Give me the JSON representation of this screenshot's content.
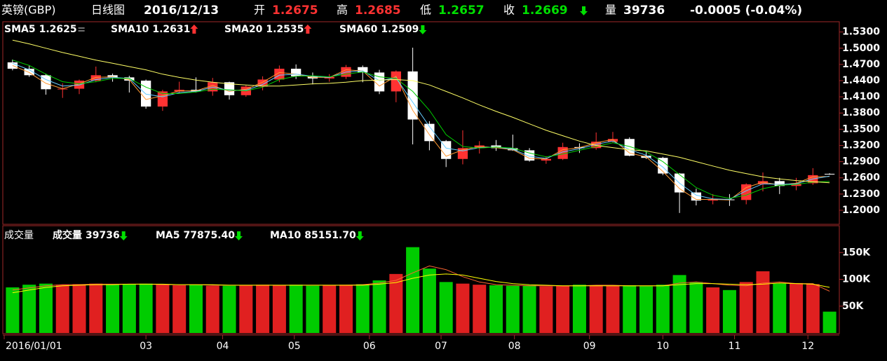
{
  "header": {
    "symbol": "英镑(GBP)",
    "period": "日线图",
    "date": "2016/12/13",
    "open_label": "开",
    "open": "1.2675",
    "high_label": "高",
    "high": "1.2685",
    "low_label": "低",
    "low": "1.2657",
    "close_label": "收",
    "close": "1.2669",
    "close_trend": "down",
    "volume_label": "量",
    "volume": "39736",
    "change": "-0.0005 (-0.04%)"
  },
  "chart_data": [
    {
      "type": "candlestick",
      "up_color": "#ff3232",
      "down_color": "#ffffff",
      "x": [
        0,
        1,
        2,
        3,
        4,
        5,
        6,
        7,
        8,
        9,
        10,
        11,
        12,
        13,
        14,
        15,
        16,
        17,
        18,
        19,
        20,
        21,
        22,
        23,
        24,
        25,
        26,
        27,
        28,
        29,
        30,
        31,
        32,
        33,
        34,
        35,
        36,
        37,
        38,
        39,
        40,
        41,
        42,
        43,
        44,
        45,
        46,
        47,
        48,
        49
      ],
      "xlim": [
        -0.5,
        49.5
      ],
      "ylim": [
        1.174,
        1.549
      ],
      "yticks": [
        {
          "value": 1.53,
          "label": "1.5300"
        },
        {
          "value": 1.5,
          "label": "1.5000"
        },
        {
          "value": 1.47,
          "label": "1.4700"
        },
        {
          "value": 1.44,
          "label": "1.4400"
        },
        {
          "value": 1.41,
          "label": "1.4100"
        },
        {
          "value": 1.38,
          "label": "1.3800"
        },
        {
          "value": 1.35,
          "label": "1.3500"
        },
        {
          "value": 1.32,
          "label": "1.3200"
        },
        {
          "value": 1.29,
          "label": "1.2900"
        },
        {
          "value": 1.26,
          "label": "1.2600"
        },
        {
          "value": 1.23,
          "label": "1.2300"
        },
        {
          "value": 1.2,
          "label": "1.2000"
        }
      ],
      "open": [
        1.4738,
        1.462,
        1.45,
        1.424,
        1.425,
        1.44,
        1.45,
        1.446,
        1.44,
        1.392,
        1.42,
        1.423,
        1.42,
        1.437,
        1.413,
        1.429,
        1.442,
        1.462,
        1.448,
        1.444,
        1.447,
        1.465,
        1.455,
        1.42,
        1.457,
        1.36,
        1.328,
        1.295,
        1.315,
        1.32,
        1.315,
        1.311,
        1.292,
        1.295,
        1.317,
        1.315,
        1.327,
        1.332,
        1.301,
        1.297,
        1.268,
        1.233,
        1.218,
        1.22,
        1.219,
        1.248,
        1.254,
        1.245,
        1.25,
        1.2675
      ],
      "high": [
        1.479,
        1.468,
        1.453,
        1.435,
        1.442,
        1.466,
        1.453,
        1.449,
        1.442,
        1.423,
        1.438,
        1.446,
        1.445,
        1.438,
        1.431,
        1.448,
        1.468,
        1.47,
        1.455,
        1.452,
        1.469,
        1.468,
        1.46,
        1.459,
        1.501,
        1.365,
        1.33,
        1.348,
        1.328,
        1.33,
        1.34,
        1.315,
        1.3,
        1.325,
        1.324,
        1.344,
        1.345,
        1.335,
        1.31,
        1.299,
        1.269,
        1.24,
        1.23,
        1.23,
        1.25,
        1.27,
        1.26,
        1.26,
        1.278,
        1.2685
      ],
      "low": [
        1.459,
        1.447,
        1.414,
        1.408,
        1.415,
        1.437,
        1.438,
        1.418,
        1.388,
        1.384,
        1.416,
        1.418,
        1.412,
        1.405,
        1.41,
        1.422,
        1.437,
        1.443,
        1.433,
        1.438,
        1.443,
        1.437,
        1.415,
        1.4,
        1.322,
        1.311,
        1.28,
        1.285,
        1.305,
        1.31,
        1.31,
        1.29,
        1.286,
        1.293,
        1.306,
        1.312,
        1.325,
        1.3,
        1.295,
        1.265,
        1.195,
        1.209,
        1.211,
        1.208,
        1.211,
        1.235,
        1.23,
        1.237,
        1.247,
        1.2657
      ],
      "close": [
        1.462,
        1.45,
        1.424,
        1.425,
        1.44,
        1.45,
        1.446,
        1.44,
        1.392,
        1.42,
        1.423,
        1.42,
        1.437,
        1.413,
        1.429,
        1.442,
        1.462,
        1.448,
        1.444,
        1.447,
        1.465,
        1.455,
        1.42,
        1.457,
        1.368,
        1.328,
        1.295,
        1.315,
        1.32,
        1.315,
        1.311,
        1.292,
        1.295,
        1.317,
        1.315,
        1.327,
        1.332,
        1.301,
        1.297,
        1.268,
        1.233,
        1.218,
        1.22,
        1.219,
        1.248,
        1.254,
        1.245,
        1.25,
        1.265,
        1.2669
      ],
      "series": [
        {
          "name": "SMA5",
          "color": "#ff9933",
          "trend": "flat",
          "values": [
            1.468,
            1.455,
            1.435,
            1.425,
            1.434,
            1.446,
            1.447,
            1.442,
            1.405,
            1.412,
            1.421,
            1.421,
            1.431,
            1.42,
            1.424,
            1.437,
            1.455,
            1.452,
            1.446,
            1.446,
            1.46,
            1.458,
            1.43,
            1.448,
            1.385,
            1.34,
            1.3,
            1.312,
            1.318,
            1.316,
            1.312,
            1.296,
            1.295,
            1.312,
            1.316,
            1.325,
            1.331,
            1.306,
            1.299,
            1.272,
            1.24,
            1.22,
            1.22,
            1.219,
            1.242,
            1.252,
            1.247,
            1.25,
            1.262,
            1.2625
          ]
        },
        {
          "name": "SMA10",
          "color": "#66ccff",
          "trend": "up",
          "values": [
            1.472,
            1.46,
            1.442,
            1.43,
            1.432,
            1.442,
            1.446,
            1.444,
            1.415,
            1.41,
            1.418,
            1.42,
            1.428,
            1.422,
            1.422,
            1.433,
            1.45,
            1.452,
            1.448,
            1.446,
            1.456,
            1.458,
            1.44,
            1.445,
            1.4,
            1.355,
            1.315,
            1.31,
            1.316,
            1.317,
            1.313,
            1.3,
            1.296,
            1.308,
            1.314,
            1.322,
            1.328,
            1.312,
            1.302,
            1.28,
            1.25,
            1.228,
            1.221,
            1.22,
            1.236,
            1.249,
            1.248,
            1.249,
            1.258,
            1.2631
          ]
        },
        {
          "name": "SMA20",
          "color": "#00cc00",
          "trend": "up",
          "values": [
            1.478,
            1.468,
            1.452,
            1.438,
            1.434,
            1.438,
            1.444,
            1.444,
            1.428,
            1.416,
            1.416,
            1.419,
            1.424,
            1.423,
            1.421,
            1.428,
            1.442,
            1.448,
            1.449,
            1.447,
            1.452,
            1.456,
            1.447,
            1.444,
            1.42,
            1.385,
            1.34,
            1.318,
            1.315,
            1.317,
            1.315,
            1.306,
            1.299,
            1.304,
            1.311,
            1.318,
            1.325,
            1.318,
            1.308,
            1.29,
            1.266,
            1.242,
            1.228,
            1.222,
            1.228,
            1.24,
            1.246,
            1.248,
            1.252,
            1.2535
          ]
        },
        {
          "name": "SMA60",
          "color": "#ffff66",
          "trend": "down",
          "values": [
            1.515,
            1.508,
            1.5,
            1.492,
            1.485,
            1.478,
            1.472,
            1.466,
            1.46,
            1.452,
            1.446,
            1.441,
            1.437,
            1.434,
            1.432,
            1.43,
            1.43,
            1.432,
            1.434,
            1.435,
            1.437,
            1.44,
            1.441,
            1.442,
            1.44,
            1.432,
            1.42,
            1.408,
            1.395,
            1.383,
            1.372,
            1.36,
            1.348,
            1.338,
            1.328,
            1.32,
            1.316,
            1.312,
            1.31,
            1.304,
            1.298,
            1.29,
            1.282,
            1.274,
            1.268,
            1.262,
            1.258,
            1.255,
            1.253,
            1.2509
          ]
        }
      ]
    },
    {
      "type": "volume",
      "title": "成交量",
      "up_color": "#e02020",
      "down_color": "#00cc00",
      "x": [
        0,
        1,
        2,
        3,
        4,
        5,
        6,
        7,
        8,
        9,
        10,
        11,
        12,
        13,
        14,
        15,
        16,
        17,
        18,
        19,
        20,
        21,
        22,
        23,
        24,
        25,
        26,
        27,
        28,
        29,
        30,
        31,
        32,
        33,
        34,
        35,
        36,
        37,
        38,
        39,
        40,
        41,
        42,
        43,
        44,
        45,
        46,
        47,
        48,
        49
      ],
      "xlim": [
        -0.5,
        49.5
      ],
      "xticks": [
        {
          "value": -0.5,
          "label": "2016/01/01"
        },
        {
          "value": 8.0,
          "label": "03"
        },
        {
          "value": 12.6,
          "label": "04"
        },
        {
          "value": 16.9,
          "label": "05"
        },
        {
          "value": 21.4,
          "label": "06"
        },
        {
          "value": 25.7,
          "label": "07"
        },
        {
          "value": 30.1,
          "label": "08"
        },
        {
          "value": 34.6,
          "label": "09"
        },
        {
          "value": 39.0,
          "label": "10"
        },
        {
          "value": 43.3,
          "label": "11"
        },
        {
          "value": 47.7,
          "label": "12"
        }
      ],
      "ylim": [
        0,
        200000
      ],
      "yticks": [
        {
          "value": 50000,
          "label": "50K"
        },
        {
          "value": 100000,
          "label": "100K"
        },
        {
          "value": 150000,
          "label": "150K"
        }
      ],
      "series": [
        {
          "name": "成交量",
          "color": "#ffffff",
          "trend": "down",
          "values": [
            85000,
            90000,
            92000,
            90000,
            91000,
            92000,
            90000,
            91000,
            92000,
            90000,
            89000,
            90000,
            88000,
            88000,
            89000,
            90000,
            89000,
            90000,
            88000,
            89000,
            90000,
            91000,
            98000,
            110000,
            160000,
            120000,
            95000,
            92000,
            90000,
            89000,
            88000,
            89000,
            87000,
            88000,
            90000,
            89000,
            88000,
            89000,
            87000,
            90000,
            108000,
            95000,
            85000,
            80000,
            95000,
            115000,
            92000,
            93000,
            91000,
            39736
          ]
        },
        {
          "name": "MA5",
          "color": "#ff6633",
          "trend": "down",
          "values": [
            80000,
            84000,
            88000,
            90000,
            90000,
            91000,
            91000,
            91000,
            91000,
            90000,
            90000,
            90000,
            89000,
            89000,
            89000,
            89000,
            89000,
            89000,
            89000,
            89000,
            89000,
            90000,
            93000,
            98000,
            112000,
            125000,
            118000,
            105000,
            95000,
            90000,
            89000,
            88000,
            88000,
            88000,
            88000,
            89000,
            89000,
            88000,
            88000,
            88000,
            93000,
            95000,
            92000,
            89000,
            88000,
            93000,
            95000,
            92000,
            92000,
            77875.4
          ],
          "value_labels": [
            null,
            null,
            null,
            null,
            null,
            null,
            null,
            null,
            null,
            null,
            null,
            null,
            null,
            null,
            null,
            null,
            null,
            null,
            null,
            null,
            null,
            null,
            null,
            null,
            null,
            null,
            null,
            null,
            null,
            null,
            null,
            null,
            null,
            null,
            null,
            null,
            null,
            null,
            null,
            null,
            null,
            null,
            null,
            null,
            null,
            null,
            null,
            null,
            null,
            "77875.40"
          ]
        },
        {
          "name": "MA10",
          "color": "#ffff00",
          "trend": "down",
          "values": [
            75000,
            80000,
            85000,
            88000,
            89000,
            90000,
            90000,
            91000,
            91000,
            91000,
            90000,
            90000,
            90000,
            89000,
            89000,
            89000,
            89000,
            89000,
            89000,
            89000,
            89000,
            89000,
            91000,
            94000,
            102000,
            108000,
            110000,
            108000,
            102000,
            96000,
            92000,
            90000,
            89000,
            88000,
            88000,
            88000,
            88000,
            88000,
            88000,
            88000,
            90000,
            92000,
            92000,
            91000,
            90000,
            91000,
            93000,
            92000,
            91000,
            85151.7
          ],
          "value_labels": [
            null,
            null,
            null,
            null,
            null,
            null,
            null,
            null,
            null,
            null,
            null,
            null,
            null,
            null,
            null,
            null,
            null,
            null,
            null,
            null,
            null,
            null,
            null,
            null,
            null,
            null,
            null,
            null,
            null,
            null,
            null,
            null,
            null,
            null,
            null,
            null,
            null,
            null,
            null,
            null,
            null,
            null,
            null,
            null,
            null,
            null,
            null,
            null,
            null,
            "85151.70"
          ]
        }
      ]
    }
  ]
}
